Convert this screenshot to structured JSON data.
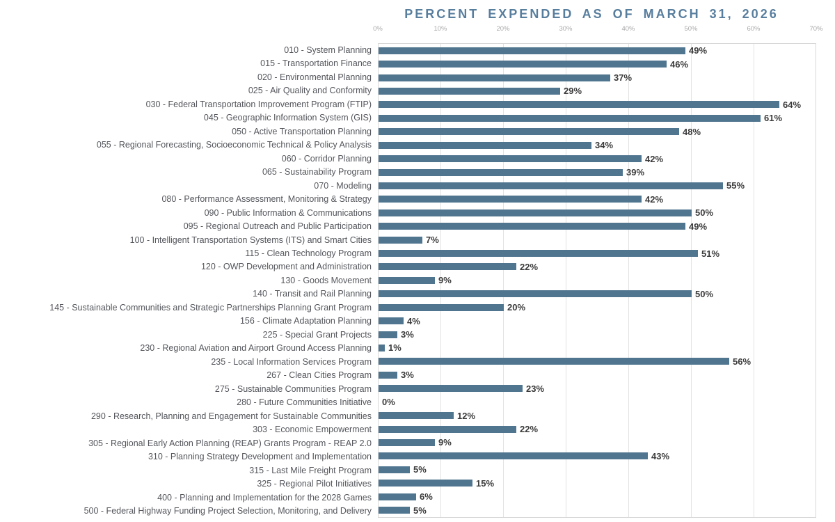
{
  "chart_data": {
    "type": "bar",
    "orientation": "horizontal",
    "title": "PERCENT EXPENDED AS OF MARCH 31, 2026",
    "xlabel": "",
    "ylabel": "",
    "xlim": [
      0,
      70
    ],
    "x_ticks": [
      "0%",
      "10%",
      "20%",
      "30%",
      "40%",
      "50%",
      "60%",
      "70%"
    ],
    "x_tick_values": [
      0,
      10,
      20,
      30,
      40,
      50,
      60,
      70
    ],
    "grid": true,
    "legend": false,
    "value_label_format": "{v}%",
    "colors": {
      "bar": "#50758f",
      "title": "#587e9e",
      "category_label": "#54565c",
      "value_label": "#3b3b3b",
      "gridline": "#e2e2e2",
      "plot_border": "#d8d8d8",
      "tick_label": "#a9a9a9"
    },
    "categories": [
      "010 - System Planning",
      "015 - Transportation Finance",
      "020 - Environmental Planning",
      "025 - Air Quality and Conformity",
      "030 - Federal Transportation Improvement Program (FTIP)",
      "045 - Geographic Information System (GIS)",
      "050 - Active Transportation Planning",
      "055 - Regional Forecasting, Socioeconomic Technical & Policy Analysis",
      "060 - Corridor Planning",
      "065 - Sustainability Program",
      "070 - Modeling",
      "080 - Performance Assessment, Monitoring & Strategy",
      "090 - Public Information & Communications",
      "095 - Regional Outreach and Public Participation",
      "100 - Intelligent Transportation Systems (ITS) and Smart Cities",
      "115 - Clean Technology Program",
      "120 - OWP Development and Administration",
      "130 - Goods Movement",
      "140 - Transit and Rail Planning",
      "145 - Sustainable Communities and Strategic Partnerships Planning Grant Program",
      "156 - Climate Adaptation Planning",
      "225 - Special Grant Projects",
      "230 - Regional Aviation and Airport Ground Access Planning",
      "235 - Local Information Services Program",
      "267 - Clean Cities Program",
      "275 - Sustainable Communities Program",
      "280 - Future Communities Initiative",
      "290 - Research, Planning and Engagement for Sustainable Communities",
      "303 - Economic Empowerment",
      "305 - Regional Early Action Planning (REAP) Grants Program - REAP 2.0",
      "310 - Planning Strategy Development and Implementation",
      "315 - Last Mile Freight Program",
      "325 - Regional Pilot Initiatives",
      "400 - Planning and Implementation for the 2028 Games",
      "500 - Federal Highway Funding Project Selection, Monitoring, and Delivery"
    ],
    "values": [
      49,
      46,
      37,
      29,
      64,
      61,
      48,
      34,
      42,
      39,
      55,
      42,
      50,
      49,
      7,
      51,
      22,
      9,
      50,
      20,
      4,
      3,
      1,
      56,
      3,
      23,
      0,
      12,
      22,
      9,
      43,
      5,
      15,
      6,
      5
    ]
  }
}
